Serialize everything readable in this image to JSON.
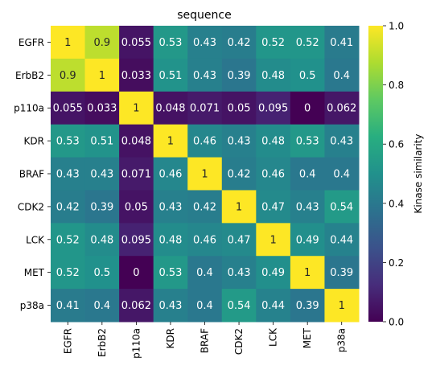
{
  "chart_data": {
    "type": "heatmap",
    "title": "sequence",
    "xlabel": "",
    "ylabel": "",
    "x_categories": [
      "EGFR",
      "ErbB2",
      "p110a",
      "KDR",
      "BRAF",
      "CDK2",
      "LCK",
      "MET",
      "p38a"
    ],
    "y_categories": [
      "EGFR",
      "ErbB2",
      "p110a",
      "KDR",
      "BRAF",
      "CDK2",
      "LCK",
      "MET",
      "p38a"
    ],
    "values": [
      [
        1,
        0.9,
        0.055,
        0.53,
        0.43,
        0.42,
        0.52,
        0.52,
        0.41
      ],
      [
        0.9,
        1,
        0.033,
        0.51,
        0.43,
        0.39,
        0.48,
        0.5,
        0.4
      ],
      [
        0.055,
        0.033,
        1,
        0.048,
        0.071,
        0.05,
        0.095,
        0,
        0.062
      ],
      [
        0.53,
        0.51,
        0.048,
        1,
        0.46,
        0.43,
        0.48,
        0.53,
        0.43
      ],
      [
        0.43,
        0.43,
        0.071,
        0.46,
        1,
        0.42,
        0.46,
        0.4,
        0.4
      ],
      [
        0.42,
        0.39,
        0.05,
        0.43,
        0.42,
        1,
        0.47,
        0.43,
        0.54
      ],
      [
        0.52,
        0.48,
        0.095,
        0.48,
        0.46,
        0.47,
        1,
        0.49,
        0.44
      ],
      [
        0.52,
        0.5,
        0,
        0.53,
        0.4,
        0.43,
        0.49,
        1,
        0.39
      ],
      [
        0.41,
        0.4,
        0.062,
        0.43,
        0.4,
        0.54,
        0.44,
        0.39,
        1
      ]
    ],
    "colormap": "viridis",
    "vmin": 0,
    "vmax": 1,
    "colorbar": {
      "label": "Kinase similarity",
      "ticks": [
        0.0,
        0.2,
        0.4,
        0.6,
        0.8,
        1.0
      ],
      "tick_labels": [
        "0.0",
        "0.2",
        "0.4",
        "0.6",
        "0.8",
        "1.0"
      ]
    },
    "annotations": true,
    "grid": false
  }
}
